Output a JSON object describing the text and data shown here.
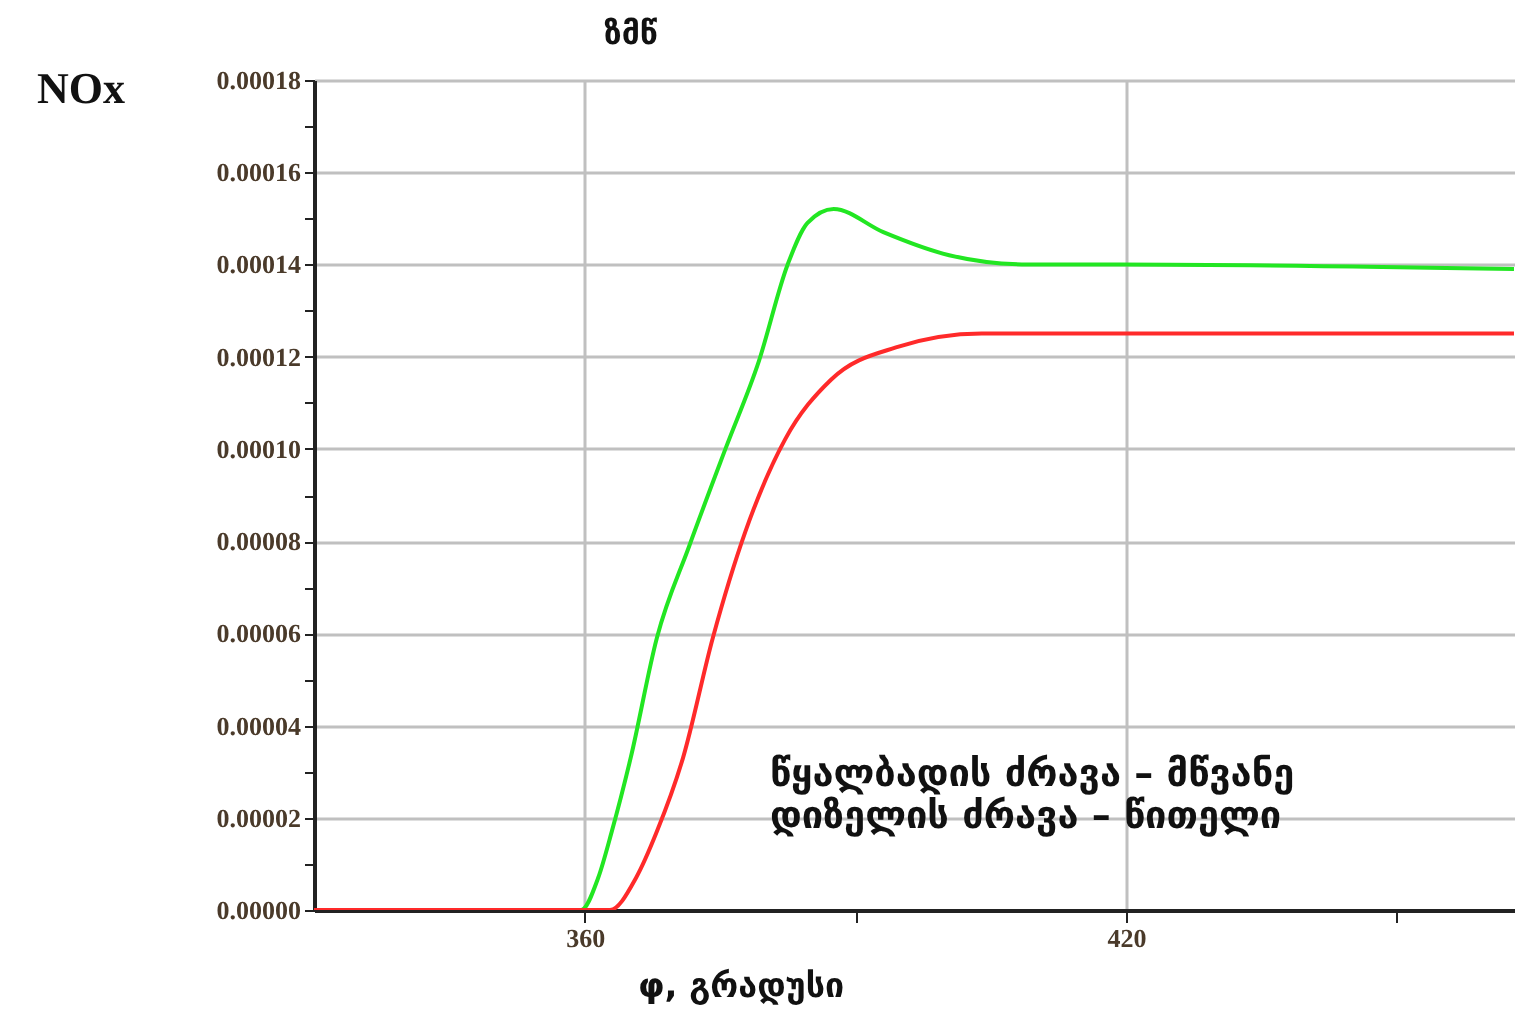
{
  "chart_data": {
    "type": "line",
    "title": "ზმწ",
    "xlabel": "φ, გრადუსი",
    "ylabel": "NOx",
    "xlim": [
      330,
      463
    ],
    "xticks": [
      360,
      {
        "value": 390,
        "label": null
      },
      420,
      {
        "value": 450,
        "label": null
      }
    ],
    "ylim": [
      0,
      0.00018
    ],
    "yticks": [
      {
        "value": 0,
        "label": "0.00000"
      },
      {
        "value": 1e-05,
        "label": null
      },
      {
        "value": 2e-05,
        "label": "0.00002"
      },
      {
        "value": 3e-05,
        "label": null
      },
      {
        "value": 4e-05,
        "label": "0.00004"
      },
      {
        "value": 5e-05,
        "label": null
      },
      {
        "value": 6e-05,
        "label": "0.00006"
      },
      {
        "value": 7e-05,
        "label": null
      },
      {
        "value": 8e-05,
        "label": "0.00008"
      },
      {
        "value": 9e-05,
        "label": null
      },
      {
        "value": 0.0001,
        "label": "0.00010"
      },
      {
        "value": 0.00011,
        "label": null
      },
      {
        "value": 0.00012,
        "label": "0.00012"
      },
      {
        "value": 0.00013,
        "label": null
      },
      {
        "value": 0.00014,
        "label": "0.00014"
      },
      {
        "value": 0.00015,
        "label": null
      },
      {
        "value": 0.00016,
        "label": "0.00016"
      },
      {
        "value": 0.00017,
        "label": null
      },
      {
        "value": 0.00018,
        "label": "0.00018"
      }
    ],
    "grid": true,
    "legend": false,
    "annotations": [
      "წყალბადის ძრავა – მწვანე",
      "დიზელის ძრავა – წითელი"
    ],
    "series": [
      {
        "color": "#22e622",
        "x": [
          330,
          359.6,
          361.5,
          363,
          365.1,
          368,
          371.6,
          375.6,
          379.3,
          382.5,
          384.7,
          387.6,
          393.1,
          400.4,
          409.1,
          419.3,
          463
        ],
        "values": [
          0,
          0,
          7e-06,
          1.7e-05,
          3.3e-05,
          5.9e-05,
          7.9e-05,
          0.0001,
          0.000119,
          0.00014,
          0.000149,
          0.000152,
          0.000147,
          0.000142,
          0.00014,
          0.00014,
          0.000139
        ]
      },
      {
        "color": "#ff2a2a",
        "x": [
          330,
          362.8,
          365.7,
          368,
          370.9,
          374.2,
          377.8,
          382.2,
          387.3,
          394.5,
          404,
          418.5,
          463
        ],
        "values": [
          0,
          0,
          7e-06,
          1.7e-05,
          3.3e-05,
          5.9e-05,
          8.2e-05,
          0.000102,
          0.000115,
          0.000122,
          0.000125,
          0.000125,
          0.000125
        ]
      }
    ]
  }
}
